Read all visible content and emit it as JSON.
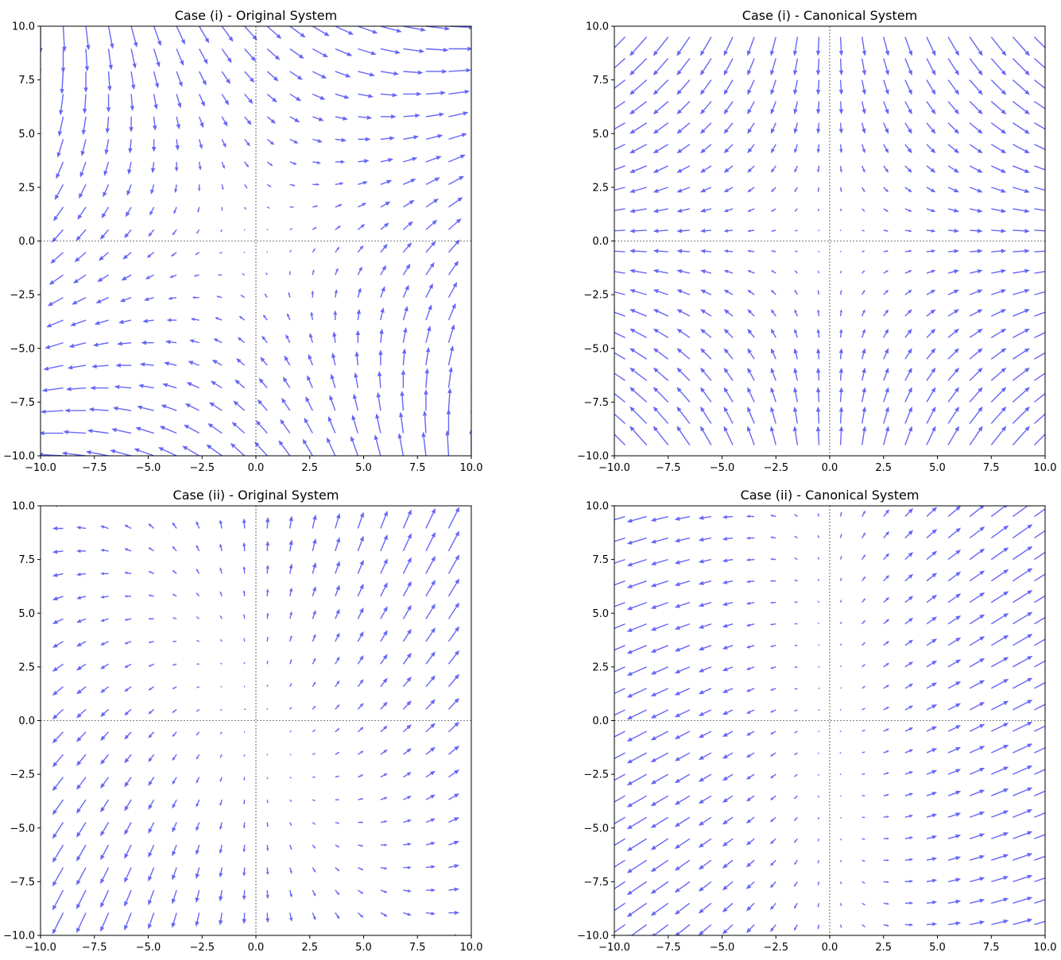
{
  "figure": {
    "background": "#ffffff",
    "arrow_color": "#4b4bf5",
    "axis_color": "#000000"
  },
  "chart_data": [
    {
      "type": "quiver",
      "title": "Case (i) - Original System",
      "xlim": [
        -10,
        10
      ],
      "ylim": [
        -10,
        10
      ],
      "xticks": [
        "−10.0",
        "−7.5",
        "−5.0",
        "−2.5",
        "0.0",
        "2.5",
        "5.0",
        "7.5",
        "10.0"
      ],
      "yticks": [
        "−10.0",
        "−7.5",
        "−5.0",
        "−2.5",
        "0.0",
        "2.5",
        "5.0",
        "7.5",
        "10.0"
      ],
      "tick_values": [
        -10,
        -7.5,
        -5,
        -2.5,
        0,
        2.5,
        5,
        7.5,
        10
      ],
      "grid_start": -10,
      "grid_step": 1.0526,
      "grid_n": 20,
      "field": {
        "a": 1,
        "b": 1,
        "c": 1,
        "d": -1
      },
      "reference_lines": [
        "x = 0",
        "y = 0"
      ]
    },
    {
      "type": "quiver",
      "title": "Case (i) - Canonical System",
      "xlim": [
        -10,
        10
      ],
      "ylim": [
        -10,
        10
      ],
      "xticks": [
        "−10.0",
        "−7.5",
        "−5.0",
        "−2.5",
        "0.0",
        "2.5",
        "5.0",
        "7.5",
        "10.0"
      ],
      "yticks": [
        "−10.0",
        "−7.5",
        "−5.0",
        "−2.5",
        "0.0",
        "2.5",
        "5.0",
        "7.5",
        "10.0"
      ],
      "tick_values": [
        -10,
        -7.5,
        -5,
        -2.5,
        0,
        2.5,
        5,
        7.5,
        10
      ],
      "grid_start": -9.5,
      "grid_step": 1.0,
      "grid_n": 20,
      "field": {
        "a": 1.4142,
        "b": 0,
        "c": 0,
        "d": -1.4142
      },
      "reference_lines": [
        "x = 0",
        "y = 0"
      ]
    },
    {
      "type": "quiver",
      "title": "Case (ii) - Original System",
      "xlim": [
        -10,
        10
      ],
      "ylim": [
        -10,
        10
      ],
      "xticks": [
        "−10.0",
        "−7.5",
        "−5.0",
        "−2.5",
        "0.0",
        "2.5",
        "5.0",
        "7.5",
        "10.0"
      ],
      "yticks": [
        "−10.0",
        "−7.5",
        "−5.0",
        "−2.5",
        "0.0",
        "2.5",
        "5.0",
        "7.5",
        "10.0"
      ],
      "tick_values": [
        -10,
        -7.5,
        -5,
        -2.5,
        0,
        2.5,
        5,
        7.5,
        10
      ],
      "grid_start": -10,
      "grid_step": 1.0526,
      "grid_n": 20,
      "field": {
        "a": 1,
        "b": 0,
        "c": 1,
        "d": 1
      },
      "reference_lines": [
        "x = 0",
        "y = 0"
      ]
    },
    {
      "type": "quiver",
      "title": "Case (ii) - Canonical System",
      "xlim": [
        -10,
        10
      ],
      "ylim": [
        -10,
        10
      ],
      "xticks": [
        "−10.0",
        "−7.5",
        "−5.0",
        "−2.5",
        "0.0",
        "2.5",
        "5.0",
        "7.5",
        "10.0"
      ],
      "yticks": [
        "−10.0",
        "−7.5",
        "−5.0",
        "−2.5",
        "0.0",
        "2.5",
        "5.0",
        "7.5",
        "10.0"
      ],
      "tick_values": [
        -10,
        -7.5,
        -5,
        -2.5,
        0,
        2.5,
        5,
        7.5,
        10
      ],
      "grid_start": -9.5,
      "grid_step": 1.0,
      "grid_n": 20,
      "field": {
        "a": 1,
        "b": 0,
        "c": 0.5,
        "d": 0.2
      },
      "reference_lines": [
        "x = 0",
        "y = 0"
      ]
    }
  ]
}
